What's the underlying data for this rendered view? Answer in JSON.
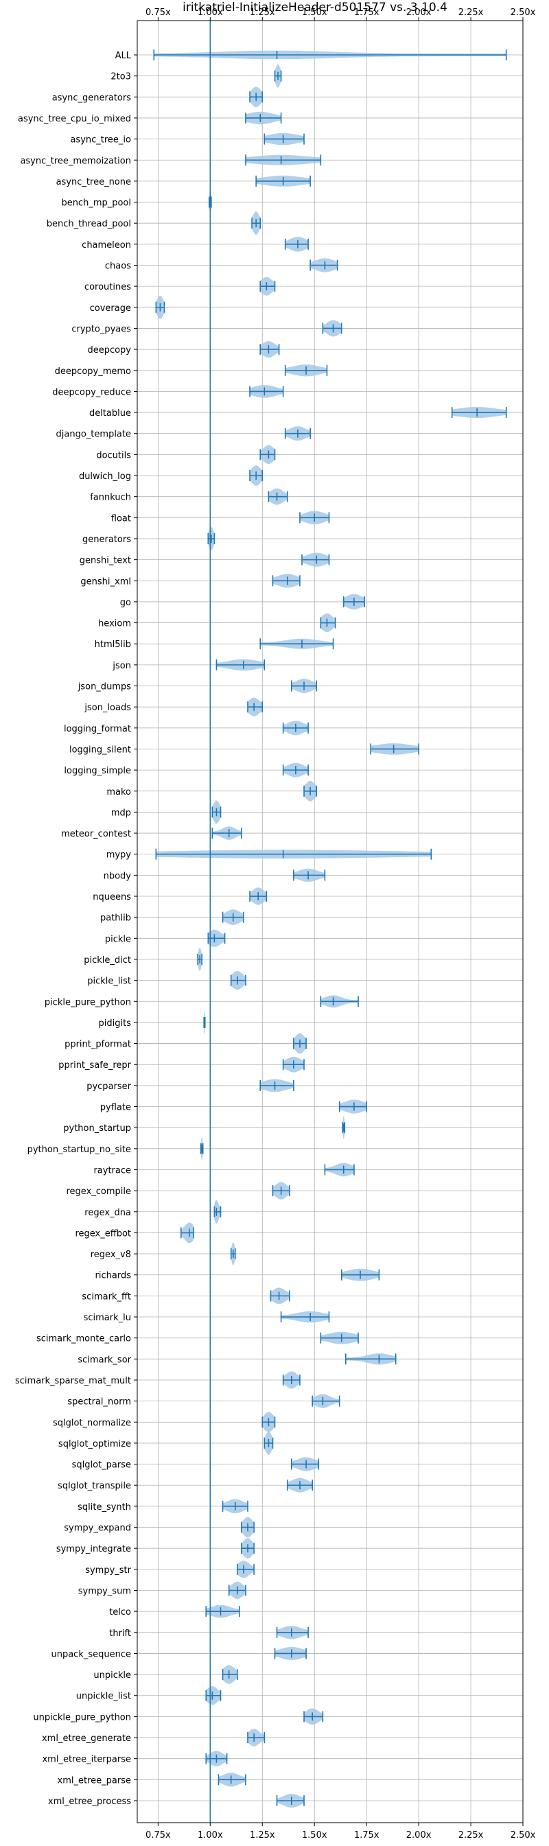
{
  "chart_data": {
    "type": "violin",
    "title": "iritkatriel-InitializeHeader-d501577 vs. 3.10.4",
    "xlim": [
      0.65,
      2.5
    ],
    "x_ticks": [
      "0.75x",
      "1.00x",
      "1.25x",
      "1.50x",
      "1.75x",
      "2.00x",
      "2.25x",
      "2.50x"
    ],
    "x_tick_values": [
      0.75,
      1.0,
      1.25,
      1.5,
      1.75,
      2.0,
      2.25,
      2.5
    ],
    "reference_line": 1.0,
    "grid": true,
    "colors": {
      "violin_fill": "#a6c8e6",
      "line": "#1f77b4",
      "grid": "#b0b0b0"
    },
    "benchmarks": [
      {
        "name": "ALL",
        "min": 0.73,
        "max": 2.42,
        "median": 1.32,
        "spread": 0.35
      },
      {
        "name": "2to3",
        "min": 1.31,
        "max": 1.34,
        "median": 1.325,
        "spread": 0.015
      },
      {
        "name": "async_generators",
        "min": 1.19,
        "max": 1.25,
        "median": 1.22,
        "spread": 0.03
      },
      {
        "name": "async_tree_cpu_io_mixed",
        "min": 1.17,
        "max": 1.34,
        "median": 1.24,
        "spread": 0.08
      },
      {
        "name": "async_tree_io",
        "min": 1.26,
        "max": 1.45,
        "median": 1.35,
        "spread": 0.09
      },
      {
        "name": "async_tree_memoization",
        "min": 1.17,
        "max": 1.53,
        "median": 1.34,
        "spread": 0.17
      },
      {
        "name": "async_tree_none",
        "min": 1.22,
        "max": 1.48,
        "median": 1.35,
        "spread": 0.12
      },
      {
        "name": "bench_mp_pool",
        "min": 0.995,
        "max": 1.005,
        "median": 1.0,
        "spread": 0.005
      },
      {
        "name": "bench_thread_pool",
        "min": 1.2,
        "max": 1.24,
        "median": 1.22,
        "spread": 0.02
      },
      {
        "name": "chameleon",
        "min": 1.36,
        "max": 1.47,
        "median": 1.42,
        "spread": 0.05
      },
      {
        "name": "chaos",
        "min": 1.48,
        "max": 1.61,
        "median": 1.55,
        "spread": 0.06
      },
      {
        "name": "coroutines",
        "min": 1.24,
        "max": 1.31,
        "median": 1.27,
        "spread": 0.035
      },
      {
        "name": "coverage",
        "min": 0.74,
        "max": 0.78,
        "median": 0.76,
        "spread": 0.02
      },
      {
        "name": "crypto_pyaes",
        "min": 1.54,
        "max": 1.63,
        "median": 1.59,
        "spread": 0.04
      },
      {
        "name": "deepcopy",
        "min": 1.24,
        "max": 1.33,
        "median": 1.28,
        "spread": 0.04
      },
      {
        "name": "deepcopy_memo",
        "min": 1.36,
        "max": 1.56,
        "median": 1.46,
        "spread": 0.08
      },
      {
        "name": "deepcopy_reduce",
        "min": 1.19,
        "max": 1.35,
        "median": 1.26,
        "spread": 0.07
      },
      {
        "name": "deltablue",
        "min": 2.16,
        "max": 2.42,
        "median": 2.28,
        "spread": 0.12
      },
      {
        "name": "django_template",
        "min": 1.36,
        "max": 1.48,
        "median": 1.42,
        "spread": 0.05
      },
      {
        "name": "docutils",
        "min": 1.24,
        "max": 1.31,
        "median": 1.28,
        "spread": 0.035
      },
      {
        "name": "dulwich_log",
        "min": 1.19,
        "max": 1.25,
        "median": 1.22,
        "spread": 0.03
      },
      {
        "name": "fannkuch",
        "min": 1.28,
        "max": 1.37,
        "median": 1.32,
        "spread": 0.04
      },
      {
        "name": "float",
        "min": 1.43,
        "max": 1.57,
        "median": 1.5,
        "spread": 0.06
      },
      {
        "name": "generators",
        "min": 0.99,
        "max": 1.02,
        "median": 1.005,
        "spread": 0.015
      },
      {
        "name": "genshi_text",
        "min": 1.44,
        "max": 1.57,
        "median": 1.51,
        "spread": 0.06
      },
      {
        "name": "genshi_xml",
        "min": 1.3,
        "max": 1.43,
        "median": 1.37,
        "spread": 0.06
      },
      {
        "name": "go",
        "min": 1.64,
        "max": 1.74,
        "median": 1.69,
        "spread": 0.05
      },
      {
        "name": "hexiom",
        "min": 1.53,
        "max": 1.6,
        "median": 1.56,
        "spread": 0.035
      },
      {
        "name": "html5lib",
        "min": 1.24,
        "max": 1.59,
        "median": 1.44,
        "spread": 0.1
      },
      {
        "name": "json",
        "min": 1.03,
        "max": 1.26,
        "median": 1.16,
        "spread": 0.09
      },
      {
        "name": "json_dumps",
        "min": 1.39,
        "max": 1.51,
        "median": 1.45,
        "spread": 0.05
      },
      {
        "name": "json_loads",
        "min": 1.18,
        "max": 1.25,
        "median": 1.21,
        "spread": 0.035
      },
      {
        "name": "logging_format",
        "min": 1.35,
        "max": 1.47,
        "median": 1.41,
        "spread": 0.05
      },
      {
        "name": "logging_silent",
        "min": 1.77,
        "max": 2.0,
        "median": 1.88,
        "spread": 0.11
      },
      {
        "name": "logging_simple",
        "min": 1.35,
        "max": 1.47,
        "median": 1.41,
        "spread": 0.05
      },
      {
        "name": "mako",
        "min": 1.45,
        "max": 1.51,
        "median": 1.48,
        "spread": 0.03
      },
      {
        "name": "mdp",
        "min": 1.01,
        "max": 1.05,
        "median": 1.03,
        "spread": 0.02
      },
      {
        "name": "meteor_contest",
        "min": 1.01,
        "max": 1.15,
        "median": 1.09,
        "spread": 0.04
      },
      {
        "name": "mypy",
        "min": 0.74,
        "max": 2.06,
        "median": 1.35,
        "spread": 0.66
      },
      {
        "name": "nbody",
        "min": 1.4,
        "max": 1.55,
        "median": 1.47,
        "spread": 0.06
      },
      {
        "name": "nqueens",
        "min": 1.19,
        "max": 1.27,
        "median": 1.23,
        "spread": 0.035
      },
      {
        "name": "pathlib",
        "min": 1.06,
        "max": 1.16,
        "median": 1.11,
        "spread": 0.045
      },
      {
        "name": "pickle",
        "min": 0.99,
        "max": 1.07,
        "median": 1.02,
        "spread": 0.04
      },
      {
        "name": "pickle_dict",
        "min": 0.94,
        "max": 0.96,
        "median": 0.95,
        "spread": 0.01
      },
      {
        "name": "pickle_list",
        "min": 1.1,
        "max": 1.17,
        "median": 1.13,
        "spread": 0.035
      },
      {
        "name": "pickle_pure_python",
        "min": 1.53,
        "max": 1.71,
        "median": 1.59,
        "spread": 0.05
      },
      {
        "name": "pidigits",
        "min": 0.97,
        "max": 0.975,
        "median": 0.972,
        "spread": 0.004
      },
      {
        "name": "pprint_pformat",
        "min": 1.4,
        "max": 1.46,
        "median": 1.43,
        "spread": 0.03
      },
      {
        "name": "pprint_safe_repr",
        "min": 1.35,
        "max": 1.45,
        "median": 1.4,
        "spread": 0.045
      },
      {
        "name": "pycparser",
        "min": 1.24,
        "max": 1.4,
        "median": 1.31,
        "spread": 0.07
      },
      {
        "name": "pyflate",
        "min": 1.62,
        "max": 1.75,
        "median": 1.69,
        "spread": 0.06
      },
      {
        "name": "python_startup",
        "min": 1.635,
        "max": 1.645,
        "median": 1.64,
        "spread": 0.005
      },
      {
        "name": "python_startup_no_site",
        "min": 0.955,
        "max": 0.965,
        "median": 0.96,
        "spread": 0.005
      },
      {
        "name": "raytrace",
        "min": 1.55,
        "max": 1.69,
        "median": 1.64,
        "spread": 0.05
      },
      {
        "name": "regex_compile",
        "min": 1.3,
        "max": 1.38,
        "median": 1.34,
        "spread": 0.035
      },
      {
        "name": "regex_dna",
        "min": 1.02,
        "max": 1.05,
        "median": 1.03,
        "spread": 0.015
      },
      {
        "name": "regex_effbot",
        "min": 0.86,
        "max": 0.92,
        "median": 0.9,
        "spread": 0.03
      },
      {
        "name": "regex_v8",
        "min": 1.1,
        "max": 1.12,
        "median": 1.11,
        "spread": 0.01
      },
      {
        "name": "richards",
        "min": 1.63,
        "max": 1.81,
        "median": 1.72,
        "spread": 0.08
      },
      {
        "name": "scimark_fft",
        "min": 1.29,
        "max": 1.38,
        "median": 1.33,
        "spread": 0.04
      },
      {
        "name": "scimark_lu",
        "min": 1.34,
        "max": 1.57,
        "median": 1.48,
        "spread": 0.08
      },
      {
        "name": "scimark_monte_carlo",
        "min": 1.53,
        "max": 1.71,
        "median": 1.63,
        "spread": 0.08
      },
      {
        "name": "scimark_sor",
        "min": 1.65,
        "max": 1.89,
        "median": 1.81,
        "spread": 0.07
      },
      {
        "name": "scimark_sparse_mat_mult",
        "min": 1.35,
        "max": 1.43,
        "median": 1.39,
        "spread": 0.035
      },
      {
        "name": "spectral_norm",
        "min": 1.49,
        "max": 1.62,
        "median": 1.54,
        "spread": 0.045
      },
      {
        "name": "sqlglot_normalize",
        "min": 1.25,
        "max": 1.31,
        "median": 1.28,
        "spread": 0.03
      },
      {
        "name": "sqlglot_optimize",
        "min": 1.26,
        "max": 1.3,
        "median": 1.28,
        "spread": 0.02
      },
      {
        "name": "sqlglot_parse",
        "min": 1.39,
        "max": 1.52,
        "median": 1.46,
        "spread": 0.055
      },
      {
        "name": "sqlglot_transpile",
        "min": 1.37,
        "max": 1.49,
        "median": 1.43,
        "spread": 0.05
      },
      {
        "name": "sqlite_synth",
        "min": 1.06,
        "max": 1.18,
        "median": 1.12,
        "spread": 0.05
      },
      {
        "name": "sympy_expand",
        "min": 1.15,
        "max": 1.21,
        "median": 1.18,
        "spread": 0.03
      },
      {
        "name": "sympy_integrate",
        "min": 1.15,
        "max": 1.21,
        "median": 1.18,
        "spread": 0.03
      },
      {
        "name": "sympy_str",
        "min": 1.13,
        "max": 1.21,
        "median": 1.16,
        "spread": 0.035
      },
      {
        "name": "sympy_sum",
        "min": 1.09,
        "max": 1.17,
        "median": 1.13,
        "spread": 0.035
      },
      {
        "name": "telco",
        "min": 0.98,
        "max": 1.14,
        "median": 1.05,
        "spread": 0.06
      },
      {
        "name": "thrift",
        "min": 1.32,
        "max": 1.47,
        "median": 1.39,
        "spread": 0.06
      },
      {
        "name": "unpack_sequence",
        "min": 1.31,
        "max": 1.46,
        "median": 1.39,
        "spread": 0.07
      },
      {
        "name": "unpickle",
        "min": 1.06,
        "max": 1.13,
        "median": 1.09,
        "spread": 0.035
      },
      {
        "name": "unpickle_list",
        "min": 0.98,
        "max": 1.05,
        "median": 1.01,
        "spread": 0.035
      },
      {
        "name": "unpickle_pure_python",
        "min": 1.45,
        "max": 1.54,
        "median": 1.49,
        "spread": 0.04
      },
      {
        "name": "xml_etree_generate",
        "min": 1.18,
        "max": 1.26,
        "median": 1.21,
        "spread": 0.035
      },
      {
        "name": "xml_etree_iterparse",
        "min": 0.98,
        "max": 1.08,
        "median": 1.03,
        "spread": 0.04
      },
      {
        "name": "xml_etree_parse",
        "min": 1.04,
        "max": 1.17,
        "median": 1.1,
        "spread": 0.05
      },
      {
        "name": "xml_etree_process",
        "min": 1.32,
        "max": 1.45,
        "median": 1.39,
        "spread": 0.05
      }
    ]
  }
}
